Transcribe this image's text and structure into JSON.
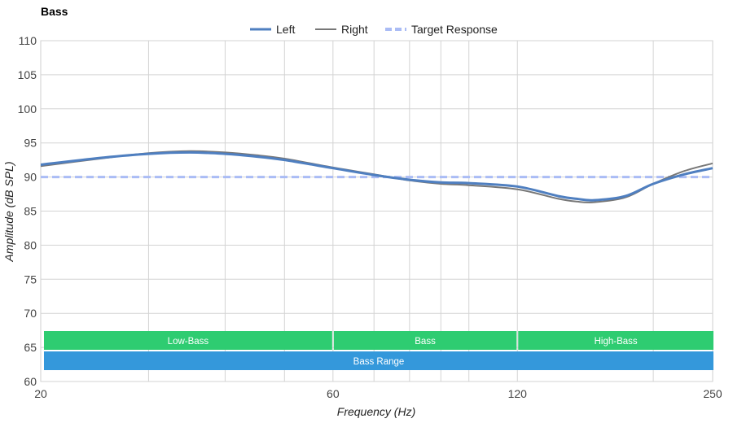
{
  "chart_data": {
    "type": "line",
    "title": "Bass",
    "xlabel": "Frequency (Hz)",
    "ylabel": "Amplitude (dB SPL)",
    "x_scale": "log",
    "xlim": [
      20,
      250
    ],
    "ylim": [
      60,
      110
    ],
    "x_tick_labels": [
      20,
      60,
      120,
      250
    ],
    "x_minor_gridlines": [
      30,
      40,
      50,
      70,
      80,
      90,
      100,
      200
    ],
    "y_ticks": [
      60,
      65,
      70,
      75,
      80,
      85,
      90,
      95,
      100,
      105,
      110
    ],
    "grid": true,
    "legend_position": "top-center",
    "series": [
      {
        "name": "Left",
        "color": "#4f7fc0",
        "style": "solid",
        "x": [
          20,
          25,
          30,
          35,
          40,
          45,
          50,
          60,
          70,
          80,
          90,
          100,
          120,
          140,
          150,
          160,
          180,
          200,
          225,
          250
        ],
        "y": [
          91.8,
          92.8,
          93.4,
          93.6,
          93.4,
          93.0,
          92.5,
          91.3,
          90.3,
          89.6,
          89.2,
          89.1,
          88.6,
          87.2,
          86.8,
          86.6,
          87.2,
          89.0,
          90.4,
          91.3
        ]
      },
      {
        "name": "Right",
        "color": "#777777",
        "style": "solid",
        "x": [
          20,
          25,
          30,
          35,
          40,
          45,
          50,
          60,
          70,
          80,
          90,
          100,
          120,
          140,
          150,
          160,
          180,
          200,
          225,
          250
        ],
        "y": [
          91.6,
          92.7,
          93.5,
          93.8,
          93.6,
          93.2,
          92.7,
          91.4,
          90.4,
          89.5,
          89.0,
          88.8,
          88.2,
          86.8,
          86.4,
          86.3,
          87.0,
          89.0,
          90.9,
          92.0
        ]
      },
      {
        "name": "Target Response",
        "color": "#aabcf5",
        "style": "dashed",
        "x": [
          20,
          250
        ],
        "y": [
          90,
          90
        ]
      }
    ],
    "annotations": [
      {
        "label": "Low-Bass",
        "x_start": 20,
        "x_end": 60,
        "color": "#2ecc71",
        "row": 1
      },
      {
        "label": "Bass",
        "x_start": 60,
        "x_end": 120,
        "color": "#2ecc71",
        "row": 1
      },
      {
        "label": "High-Bass",
        "x_start": 120,
        "x_end": 250,
        "color": "#2ecc71",
        "row": 1
      },
      {
        "label": "Bass Range",
        "x_start": 20,
        "x_end": 250,
        "color": "#3498db",
        "row": 2
      }
    ]
  }
}
